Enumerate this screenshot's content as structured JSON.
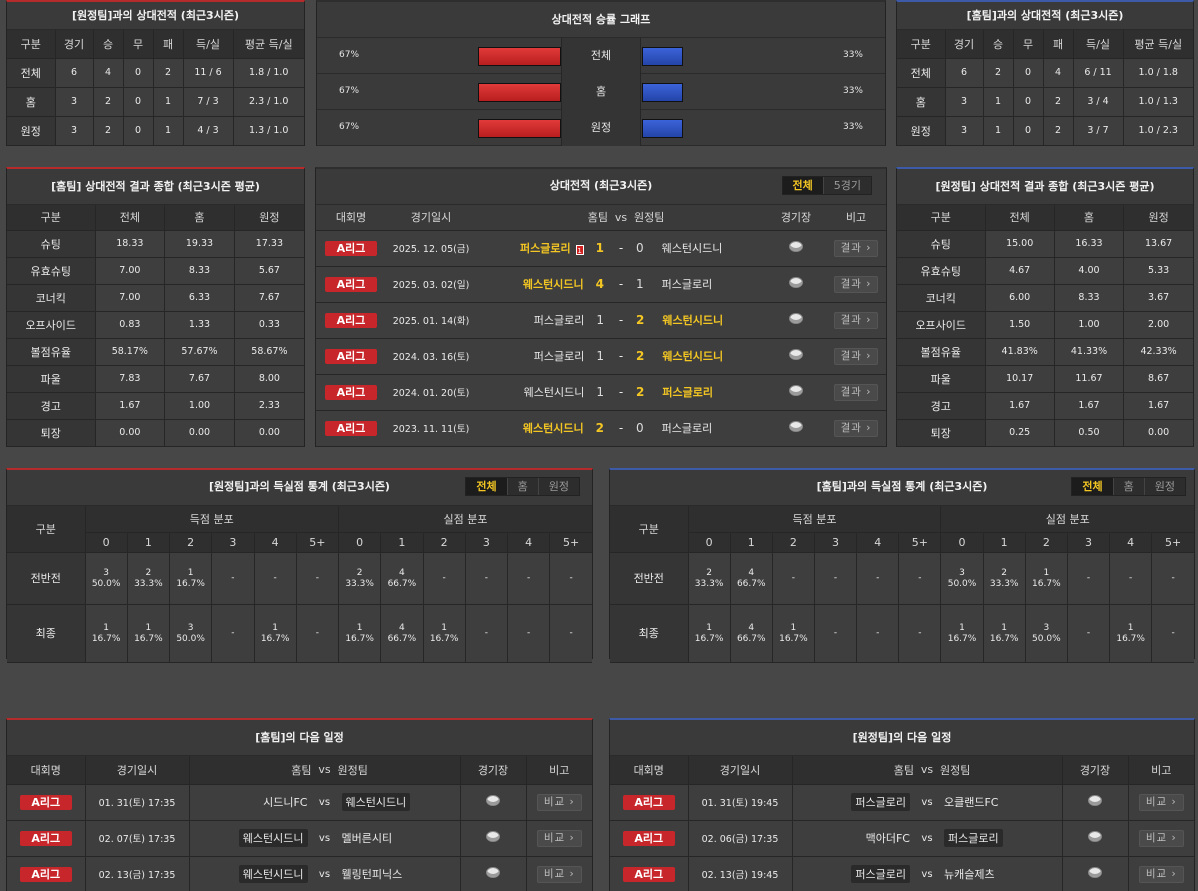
{
  "away_h2h": {
    "title": "[원정팀]과의 상대전적 (최근3시즌)",
    "headers": [
      "구분",
      "경기",
      "승",
      "무",
      "패",
      "득/실",
      "평균 득/실"
    ],
    "rows": [
      [
        "전체",
        "6",
        "4",
        "0",
        "2",
        "11 / 6",
        "1.8 / 1.0"
      ],
      [
        "홈",
        "3",
        "2",
        "0",
        "1",
        "7 / 3",
        "2.3 / 1.0"
      ],
      [
        "원정",
        "3",
        "2",
        "0",
        "1",
        "4 / 3",
        "1.3 / 1.0"
      ]
    ]
  },
  "graph": {
    "title": "상대전적 승률 그래프",
    "rows": [
      {
        "label": "전체",
        "left": "67%",
        "right": "33%",
        "home_pct": 67
      },
      {
        "label": "홈",
        "left": "67%",
        "right": "33%",
        "home_pct": 67
      },
      {
        "label": "원정",
        "left": "67%",
        "right": "33%",
        "home_pct": 67
      }
    ],
    "home_color": "#d12b2b",
    "away_color": "#2f55c9"
  },
  "home_h2h": {
    "title": "[홈팀]과의 상대전적 (최근3시즌)",
    "headers": [
      "구분",
      "경기",
      "승",
      "무",
      "패",
      "득/실",
      "평균 득/실"
    ],
    "rows": [
      [
        "전체",
        "6",
        "2",
        "0",
        "4",
        "6 / 11",
        "1.0 / 1.8"
      ],
      [
        "홈",
        "3",
        "1",
        "0",
        "2",
        "3 / 4",
        "1.0 / 1.3"
      ],
      [
        "원정",
        "3",
        "1",
        "0",
        "2",
        "3 / 7",
        "1.0 / 2.3"
      ]
    ]
  },
  "home_summary": {
    "title": "[홈팀] 상대전적 결과 종합 (최근3시즌 평균)",
    "headers": [
      "구분",
      "전체",
      "홈",
      "원정"
    ],
    "rows": [
      [
        "슈팅",
        "18.33",
        "19.33",
        "17.33"
      ],
      [
        "유효슈팅",
        "7.00",
        "8.33",
        "5.67"
      ],
      [
        "코너킥",
        "7.00",
        "6.33",
        "7.67"
      ],
      [
        "오프사이드",
        "0.83",
        "1.33",
        "0.33"
      ],
      [
        "볼점유율",
        "58.17%",
        "57.67%",
        "58.67%"
      ],
      [
        "파울",
        "7.83",
        "7.67",
        "8.00"
      ],
      [
        "경고",
        "1.67",
        "1.00",
        "2.33"
      ],
      [
        "퇴장",
        "0.00",
        "0.00",
        "0.00"
      ]
    ]
  },
  "matches": {
    "title": "상대전적 (최근3시즌)",
    "tabs": [
      "전체",
      "5경기"
    ],
    "headers": [
      "대회명",
      "경기일시",
      "홈팀",
      "vs",
      "원정팀",
      "경기장",
      "비고"
    ],
    "rows": [
      {
        "league": "A리그",
        "date": "2025. 12. 05(금)",
        "home": "퍼스글로리",
        "hs": "1",
        "as": "0",
        "away": "웨스턴시드니",
        "card": "1",
        "home_win": true,
        "away_win": false,
        "btn": "결과"
      },
      {
        "league": "A리그",
        "date": "2025. 03. 02(일)",
        "home": "웨스턴시드니",
        "hs": "4",
        "as": "1",
        "away": "퍼스글로리",
        "card": "",
        "home_win": true,
        "away_win": false,
        "btn": "결과"
      },
      {
        "league": "A리그",
        "date": "2025. 01. 14(화)",
        "home": "퍼스글로리",
        "hs": "1",
        "as": "2",
        "away": "웨스턴시드니",
        "card": "",
        "home_win": false,
        "away_win": true,
        "btn": "결과"
      },
      {
        "league": "A리그",
        "date": "2024. 03. 16(토)",
        "home": "퍼스글로리",
        "hs": "1",
        "as": "2",
        "away": "웨스턴시드니",
        "card": "",
        "home_win": false,
        "away_win": true,
        "btn": "결과"
      },
      {
        "league": "A리그",
        "date": "2024. 01. 20(토)",
        "home": "웨스턴시드니",
        "hs": "1",
        "as": "2",
        "away": "퍼스글로리",
        "card": "",
        "home_win": false,
        "away_win": true,
        "btn": "결과"
      },
      {
        "league": "A리그",
        "date": "2023. 11. 11(토)",
        "home": "웨스턴시드니",
        "hs": "2",
        "as": "0",
        "away": "퍼스글로리",
        "card": "",
        "home_win": true,
        "away_win": false,
        "btn": "결과"
      }
    ]
  },
  "away_summary": {
    "title": "[원정팀] 상대전적 결과 종합 (최근3시즌 평균)",
    "headers": [
      "구분",
      "전체",
      "홈",
      "원정"
    ],
    "rows": [
      [
        "슈팅",
        "15.00",
        "16.33",
        "13.67"
      ],
      [
        "유효슈팅",
        "4.67",
        "4.00",
        "5.33"
      ],
      [
        "코너킥",
        "6.00",
        "8.33",
        "3.67"
      ],
      [
        "오프사이드",
        "1.50",
        "1.00",
        "2.00"
      ],
      [
        "볼점유율",
        "41.83%",
        "41.33%",
        "42.33%"
      ],
      [
        "파울",
        "10.17",
        "11.67",
        "8.67"
      ],
      [
        "경고",
        "1.67",
        "1.67",
        "1.67"
      ],
      [
        "퇴장",
        "0.25",
        "0.50",
        "0.00"
      ]
    ]
  },
  "goals_left": {
    "title": "[원정팀]과의 득실점 통계 (최근3시즌)",
    "tabs": [
      "전체",
      "홈",
      "원정"
    ],
    "h_cat": "구분",
    "h_scored": "득점 분포",
    "h_conceded": "실점 분포",
    "cols": [
      "0",
      "1",
      "2",
      "3",
      "4",
      "5+"
    ],
    "rows": [
      {
        "label": "전반전",
        "scored": [
          [
            "3",
            "50.0%"
          ],
          [
            "2",
            "33.3%"
          ],
          [
            "1",
            "16.7%"
          ],
          [
            "-",
            ""
          ],
          [
            "-",
            ""
          ],
          [
            "-",
            ""
          ]
        ],
        "conceded": [
          [
            "2",
            "33.3%"
          ],
          [
            "4",
            "66.7%"
          ],
          [
            "-",
            ""
          ],
          [
            "-",
            ""
          ],
          [
            "-",
            ""
          ],
          [
            "-",
            ""
          ]
        ]
      },
      {
        "label": "최종",
        "scored": [
          [
            "1",
            "16.7%"
          ],
          [
            "1",
            "16.7%"
          ],
          [
            "3",
            "50.0%"
          ],
          [
            "-",
            ""
          ],
          [
            "1",
            "16.7%"
          ],
          [
            "-",
            ""
          ]
        ],
        "conceded": [
          [
            "1",
            "16.7%"
          ],
          [
            "4",
            "66.7%"
          ],
          [
            "1",
            "16.7%"
          ],
          [
            "-",
            ""
          ],
          [
            "-",
            ""
          ],
          [
            "-",
            ""
          ]
        ]
      }
    ]
  },
  "goals_right": {
    "title": "[홈팀]과의 득실점 통계 (최근3시즌)",
    "tabs": [
      "전체",
      "홈",
      "원정"
    ],
    "h_cat": "구분",
    "h_scored": "득점 분포",
    "h_conceded": "실점 분포",
    "cols": [
      "0",
      "1",
      "2",
      "3",
      "4",
      "5+"
    ],
    "rows": [
      {
        "label": "전반전",
        "scored": [
          [
            "2",
            "33.3%"
          ],
          [
            "4",
            "66.7%"
          ],
          [
            "-",
            ""
          ],
          [
            "-",
            ""
          ],
          [
            "-",
            ""
          ],
          [
            "-",
            ""
          ]
        ],
        "conceded": [
          [
            "3",
            "50.0%"
          ],
          [
            "2",
            "33.3%"
          ],
          [
            "1",
            "16.7%"
          ],
          [
            "-",
            ""
          ],
          [
            "-",
            ""
          ],
          [
            "-",
            ""
          ]
        ]
      },
      {
        "label": "최종",
        "scored": [
          [
            "1",
            "16.7%"
          ],
          [
            "4",
            "66.7%"
          ],
          [
            "1",
            "16.7%"
          ],
          [
            "-",
            ""
          ],
          [
            "-",
            ""
          ],
          [
            "-",
            ""
          ]
        ],
        "conceded": [
          [
            "1",
            "16.7%"
          ],
          [
            "1",
            "16.7%"
          ],
          [
            "3",
            "50.0%"
          ],
          [
            "-",
            ""
          ],
          [
            "1",
            "16.7%"
          ],
          [
            "-",
            ""
          ]
        ]
      }
    ]
  },
  "home_next": {
    "title": "[홈팀]의 다음 일정",
    "headers": [
      "대회명",
      "경기일시",
      "홈팀",
      "vs",
      "원정팀",
      "경기장",
      "비고"
    ],
    "rows": [
      {
        "league": "A리그",
        "date": "01. 31(토) 17:35",
        "home": "시드니FC",
        "away": "웨스턴시드니",
        "hl": "away",
        "btn": "비교"
      },
      {
        "league": "A리그",
        "date": "02. 07(토) 17:35",
        "home": "웨스턴시드니",
        "away": "멜버른시티",
        "hl": "home",
        "btn": "비교"
      },
      {
        "league": "A리그",
        "date": "02. 13(금) 17:35",
        "home": "웨스턴시드니",
        "away": "웰링턴피닉스",
        "hl": "home",
        "btn": "비교"
      }
    ]
  },
  "away_next": {
    "title": "[원정팀]의 다음 일정",
    "headers": [
      "대회명",
      "경기일시",
      "홈팀",
      "vs",
      "원정팀",
      "경기장",
      "비고"
    ],
    "rows": [
      {
        "league": "A리그",
        "date": "01. 31(토) 19:45",
        "home": "퍼스글로리",
        "away": "오클랜드FC",
        "hl": "home",
        "btn": "비교"
      },
      {
        "league": "A리그",
        "date": "02. 06(금) 17:35",
        "home": "맥아더FC",
        "away": "퍼스글로리",
        "hl": "away",
        "btn": "비교"
      },
      {
        "league": "A리그",
        "date": "02. 13(금) 19:45",
        "home": "퍼스글로리",
        "away": "뉴캐슬제츠",
        "hl": "home",
        "btn": "비교"
      }
    ]
  }
}
